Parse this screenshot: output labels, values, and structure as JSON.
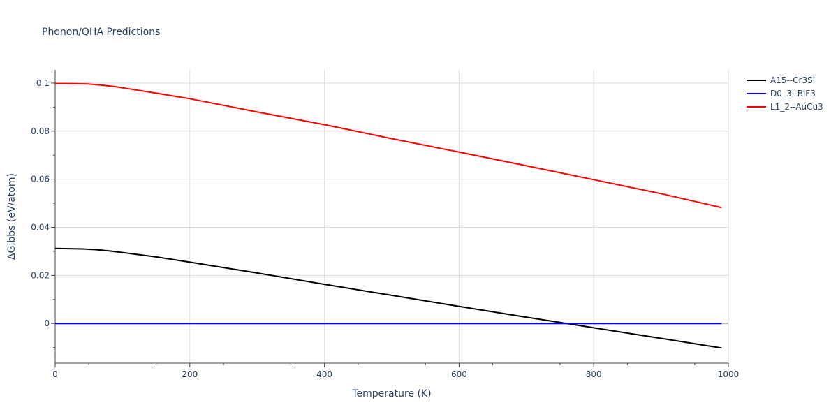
{
  "chart_data": {
    "type": "line",
    "title": "Phonon/QHA Predictions",
    "xlabel": "Temperature (K)",
    "ylabel": "ΔGibbs (eV/atom)",
    "xlim": [
      0,
      1000
    ],
    "ylim": [
      -0.0165,
      0.1055
    ],
    "xticks": [
      0,
      200,
      400,
      600,
      800,
      1000
    ],
    "xtick_labels": [
      "0",
      "200",
      "400",
      "600",
      "800",
      "1000"
    ],
    "yticks": [
      0,
      0.02,
      0.04,
      0.06,
      0.08,
      0.1
    ],
    "ytick_labels": [
      "0",
      "0.02",
      "0.04",
      "0.06",
      "0.08",
      "0.1"
    ],
    "grid": true,
    "legend_position": "top-right",
    "series": [
      {
        "name": "A15--Cr3Si",
        "color": "#000000",
        "x": [
          0,
          20,
          40,
          60,
          80,
          100,
          150,
          200,
          300,
          400,
          500,
          600,
          700,
          760,
          800,
          900,
          990
        ],
        "y": [
          0.0312,
          0.0311,
          0.031,
          0.0307,
          0.0302,
          0.0295,
          0.0277,
          0.0255,
          0.021,
          0.0163,
          0.0117,
          0.0071,
          0.0026,
          0.0,
          -0.0018,
          -0.0062,
          -0.0102
        ]
      },
      {
        "name": "D0_3--BiF3",
        "color": "#0000ff",
        "x": [
          0,
          990
        ],
        "y": [
          0,
          0
        ]
      },
      {
        "name": "L1_2--AuCu3",
        "color": "#ff0000",
        "x": [
          0,
          20,
          40,
          50,
          70,
          90,
          110,
          150,
          200,
          300,
          400,
          500,
          600,
          700,
          800,
          900,
          990
        ],
        "y": [
          0.0998,
          0.0998,
          0.0997,
          0.0996,
          0.0991,
          0.0985,
          0.0976,
          0.0958,
          0.0935,
          0.088,
          0.0827,
          0.0769,
          0.0713,
          0.0656,
          0.0598,
          0.054,
          0.0482
        ]
      }
    ]
  }
}
